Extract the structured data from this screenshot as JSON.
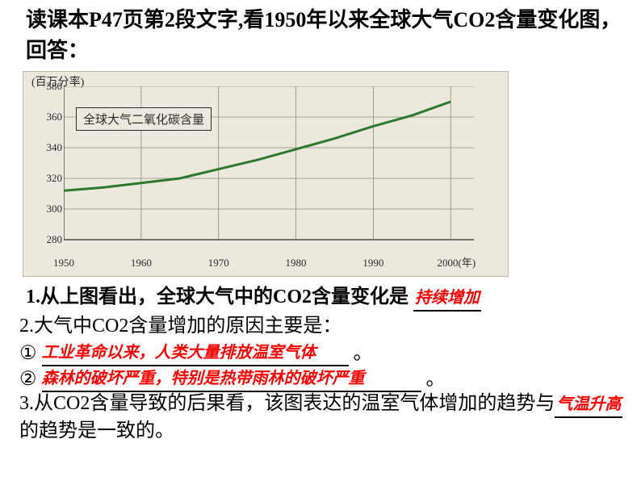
{
  "heading": "读课本P47页第2段文字,看1950年以来全球大气CO2含量变化图，回答：",
  "chart": {
    "type": "line",
    "y_axis_title": "(百万分率)",
    "series_title": "全球大气二氧化碳含量",
    "x_values": [
      1950,
      1955,
      1960,
      1965,
      1970,
      1975,
      1980,
      1985,
      1990,
      1995,
      2000
    ],
    "y_values": [
      312,
      314,
      317,
      320,
      326,
      332,
      339,
      346,
      354,
      361,
      370
    ],
    "line_color": "#2b7a2b",
    "line_width": 3,
    "xlim": [
      1950,
      2003
    ],
    "ylim": [
      280,
      380
    ],
    "yticks": [
      280,
      300,
      320,
      340,
      360,
      380
    ],
    "xticks": [
      1950,
      1960,
      1970,
      1980,
      1990,
      2000
    ],
    "x_unit_label": "2000(年)",
    "background_color": "#ece8dd",
    "grid_color": "#8a8a78",
    "axis_color": "#2a2a2a",
    "tick_fontsize": 13,
    "title_fontsize": 15
  },
  "q1_prefix": "1.从上图看出，全球大气中的CO2含量变化是",
  "q1_answer": "持续增加",
  "q2_line1": "2.大气中CO2含量增加的原因主要是：",
  "q2_opt1_num": "①",
  "q2_opt1_ans": "工业革命以来，人类大量排放温室气体",
  "q2_opt2_num": "②",
  "q2_opt2_ans": "森林的破坏严重，特别是热带雨林的破坏严重",
  "period": "。",
  "q3_part1": "3.从CO2含量导致的后果看，该图表达的温室气体增加的趋势与",
  "q3_answer": "气温升高",
  "q3_part2": "的趋势是一致的。"
}
